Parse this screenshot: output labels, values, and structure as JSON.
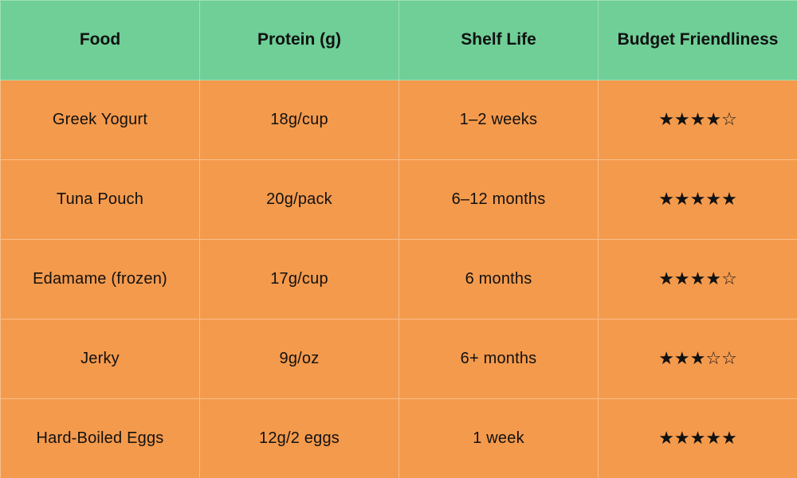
{
  "chart_data": {
    "type": "table",
    "colors": {
      "header_bg": "#6fcf97",
      "body_bg": "#f49a4c",
      "text": "#111111"
    },
    "columns": [
      "Food",
      "Protein (g)",
      "Shelf Life",
      "Budget Friendliness"
    ],
    "rows": [
      {
        "food": "Greek Yogurt",
        "protein": "18g/cup",
        "shelf_life": "1–2 weeks",
        "rating": "★★★★☆",
        "rating_value": 4,
        "rating_max": 5
      },
      {
        "food": "Tuna Pouch",
        "protein": "20g/pack",
        "shelf_life": "6–12 months",
        "rating": "★★★★★",
        "rating_value": 5,
        "rating_max": 5
      },
      {
        "food": "Edamame (frozen)",
        "protein": "17g/cup",
        "shelf_life": "6 months",
        "rating": "★★★★☆",
        "rating_value": 4,
        "rating_max": 5
      },
      {
        "food": "Jerky",
        "protein": "9g/oz",
        "shelf_life": "6+ months",
        "rating": "★★★☆☆",
        "rating_value": 3,
        "rating_max": 5
      },
      {
        "food": "Hard-Boiled Eggs",
        "protein": "12g/2 eggs",
        "shelf_life": "1 week",
        "rating": "★★★★★",
        "rating_value": 5,
        "rating_max": 5
      }
    ]
  }
}
